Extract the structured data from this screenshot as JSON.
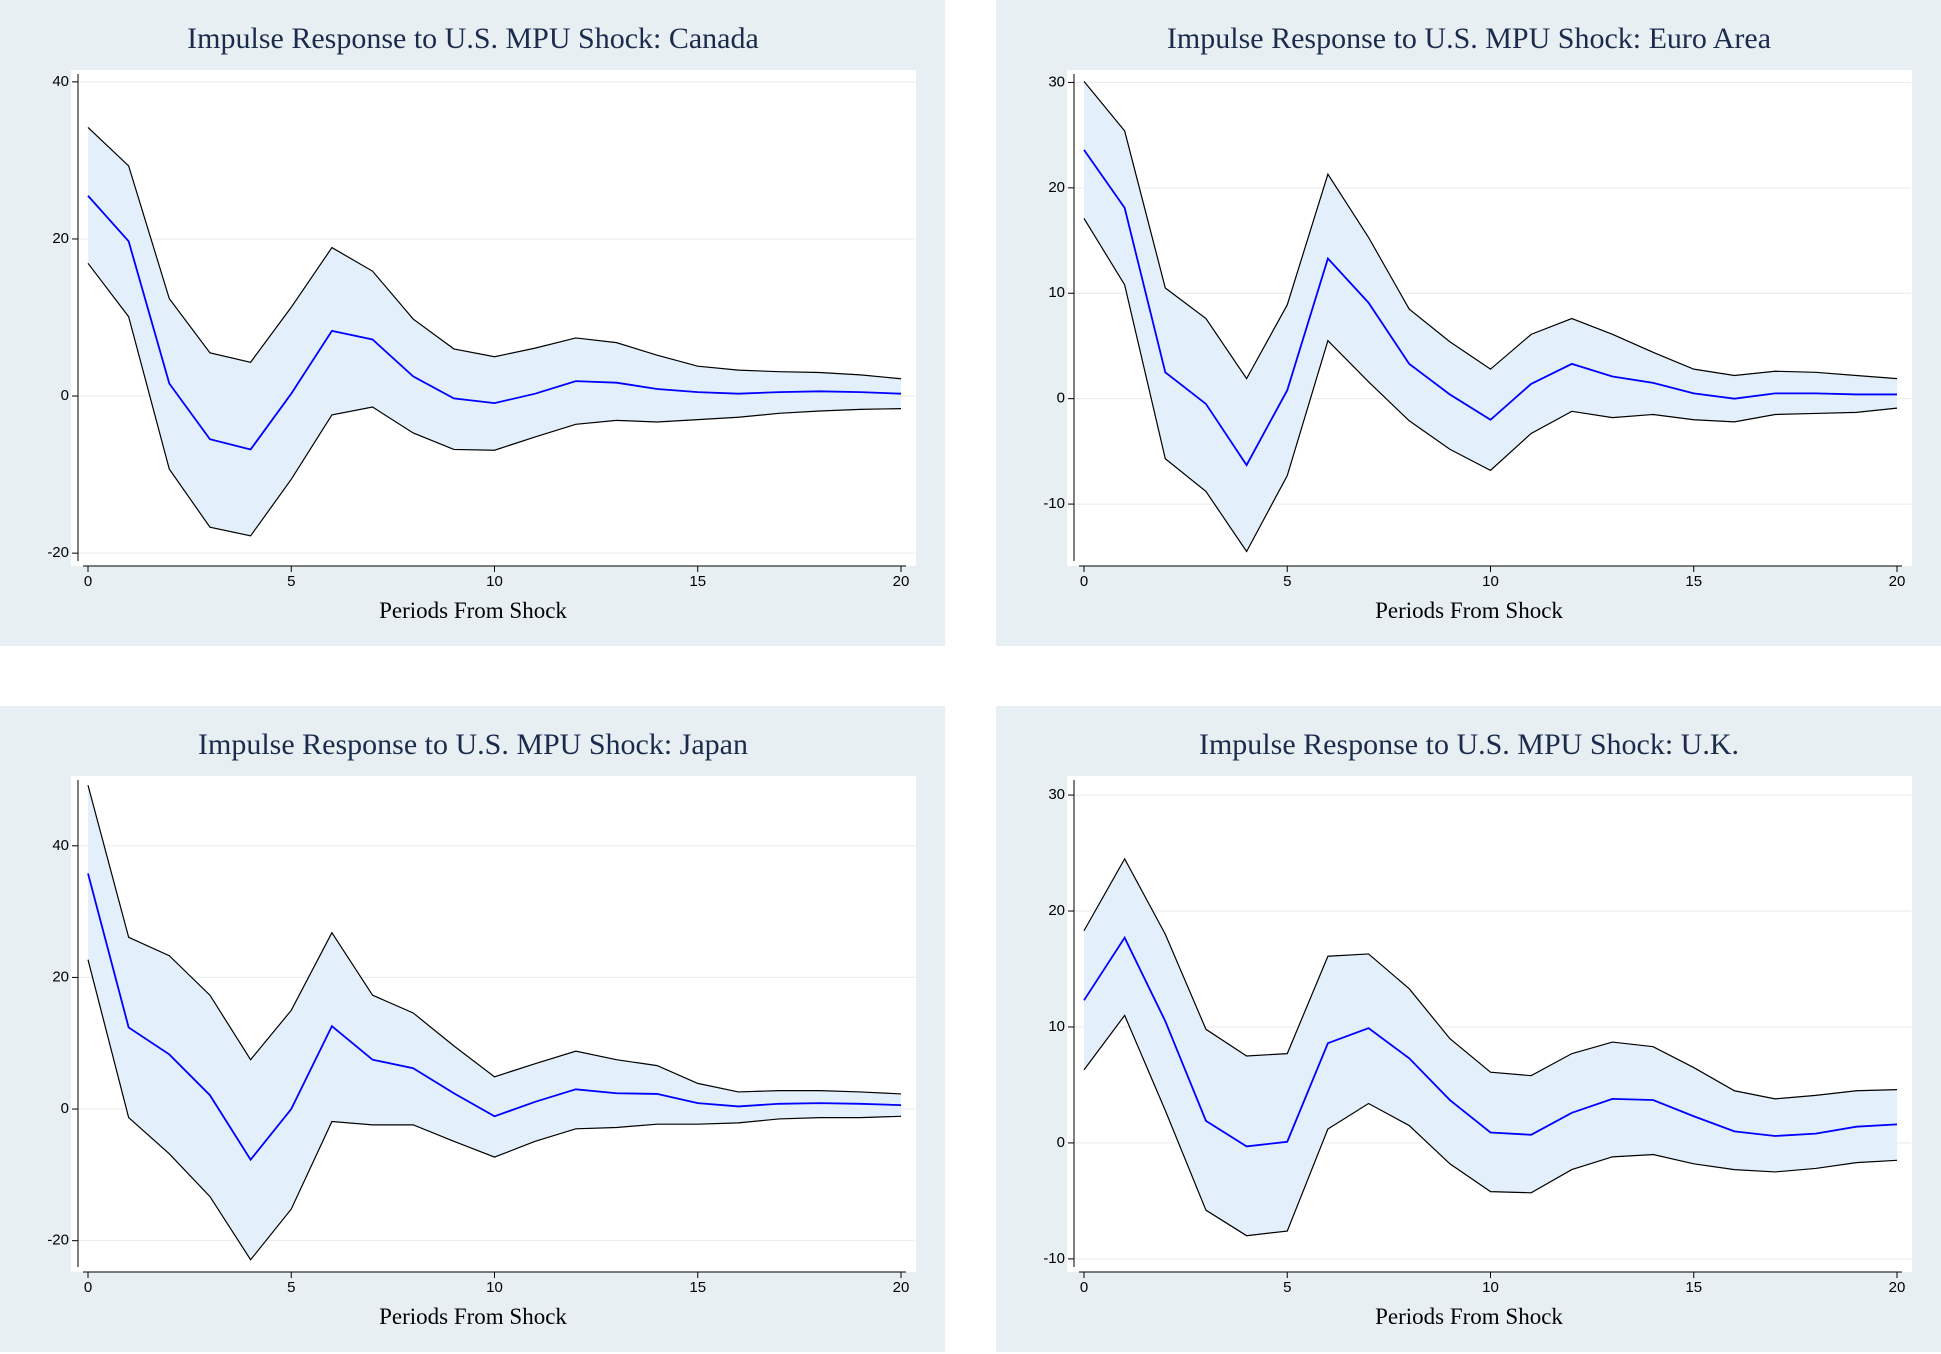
{
  "chart_data": [
    {
      "type": "line",
      "title": "Impulse Response to U.S. MPU Shock: Canada",
      "x_label": "Periods From Shock",
      "x": [
        0,
        1,
        2,
        3,
        4,
        5,
        6,
        7,
        8,
        9,
        10,
        11,
        12,
        13,
        14,
        15,
        16,
        17,
        18,
        19,
        20
      ],
      "xlim": [
        0,
        20
      ],
      "xticks": [
        0,
        5,
        10,
        15,
        20
      ],
      "ylim": [
        -21,
        41
      ],
      "yticks": [
        -20,
        0,
        20,
        40
      ],
      "grid": true,
      "series": [
        {
          "color": "#0000ff",
          "values": [
            25.5,
            19.7,
            1.6,
            -5.5,
            -6.8,
            0.3,
            8.3,
            7.2,
            2.5,
            -0.3,
            -0.9,
            0.3,
            1.9,
            1.7,
            0.9,
            0.5,
            0.3,
            0.5,
            0.6,
            0.5,
            0.3
          ]
        }
      ],
      "band": {
        "color": "#e3effa",
        "line_color": "#000000",
        "upper": [
          34.2,
          29.3,
          12.4,
          5.5,
          4.3,
          11.3,
          18.9,
          15.9,
          9.8,
          6.0,
          5.0,
          6.1,
          7.4,
          6.8,
          5.2,
          3.8,
          3.3,
          3.1,
          3.0,
          2.7,
          2.2
        ],
        "lower": [
          16.9,
          10.1,
          -9.3,
          -16.7,
          -17.8,
          -10.6,
          -2.4,
          -1.4,
          -4.7,
          -6.8,
          -6.9,
          -5.2,
          -3.6,
          -3.1,
          -3.3,
          -3.0,
          -2.7,
          -2.2,
          -1.9,
          -1.7,
          -1.6
        ]
      }
    },
    {
      "type": "line",
      "title": "Impulse Response to U.S. MPU Shock: Euro Area",
      "x_label": "Periods From Shock",
      "x": [
        0,
        1,
        2,
        3,
        4,
        5,
        6,
        7,
        8,
        9,
        10,
        11,
        12,
        13,
        14,
        15,
        16,
        17,
        18,
        19,
        20
      ],
      "xlim": [
        0,
        20
      ],
      "xticks": [
        0,
        5,
        10,
        15,
        20
      ],
      "ylim": [
        -15.4,
        30.8
      ],
      "yticks": [
        -10,
        0,
        10,
        20,
        30
      ],
      "grid": true,
      "series": [
        {
          "color": "#0000ff",
          "values": [
            23.6,
            18.1,
            2.5,
            -0.5,
            -6.3,
            0.8,
            13.3,
            9.1,
            3.3,
            0.4,
            -2.0,
            1.4,
            3.3,
            2.1,
            1.5,
            0.5,
            0,
            0.5,
            0.5,
            0.4,
            0.4
          ]
        }
      ],
      "band": {
        "color": "#e3effa",
        "line_color": "#000000",
        "upper": [
          30.1,
          25.4,
          10.5,
          7.6,
          1.9,
          8.9,
          21.3,
          15.3,
          8.5,
          5.4,
          2.8,
          6.1,
          7.6,
          6.1,
          4.4,
          2.8,
          2.2,
          2.6,
          2.5,
          2.2,
          1.9
        ],
        "lower": [
          17.1,
          10.8,
          -5.7,
          -8.8,
          -14.5,
          -7.3,
          5.5,
          1.6,
          -2.1,
          -4.8,
          -6.8,
          -3.3,
          -1.2,
          -1.8,
          -1.5,
          -2.0,
          -2.2,
          -1.5,
          -1.4,
          -1.3,
          -0.9
        ]
      }
    },
    {
      "type": "line",
      "title": "Impulse Response to U.S. MPU Shock: Japan",
      "x_label": "Periods From Shock",
      "x": [
        0,
        1,
        2,
        3,
        4,
        5,
        6,
        7,
        8,
        9,
        10,
        11,
        12,
        13,
        14,
        15,
        16,
        17,
        18,
        19,
        20
      ],
      "xlim": [
        0,
        20
      ],
      "xticks": [
        0,
        5,
        10,
        15,
        20
      ],
      "ylim": [
        -24,
        50
      ],
      "yticks": [
        -20,
        0,
        20,
        40
      ],
      "grid": true,
      "series": [
        {
          "color": "#0000ff",
          "values": [
            35.8,
            12.4,
            8.3,
            2.1,
            -7.7,
            0,
            12.6,
            7.5,
            6.2,
            2.4,
            -1.1,
            1.1,
            3.0,
            2.4,
            2.3,
            0.9,
            0.4,
            0.8,
            0.9,
            0.8,
            0.6
          ]
        }
      ],
      "band": {
        "color": "#e3effa",
        "line_color": "#000000",
        "upper": [
          49.2,
          26.1,
          23.3,
          17.3,
          7.5,
          15.0,
          26.8,
          17.3,
          14.6,
          9.6,
          4.9,
          6.9,
          8.8,
          7.5,
          6.6,
          3.9,
          2.6,
          2.8,
          2.8,
          2.6,
          2.3
        ],
        "lower": [
          22.7,
          -1.3,
          -6.8,
          -13.3,
          -22.9,
          -15.2,
          -1.9,
          -2.4,
          -2.4,
          -4.9,
          -7.3,
          -4.9,
          -3.0,
          -2.8,
          -2.3,
          -2.3,
          -2.1,
          -1.5,
          -1.3,
          -1.3,
          -1.1
        ]
      }
    },
    {
      "type": "line",
      "title": "Impulse Response to U.S. MPU Shock: U.K.",
      "x_label": "Periods From Shock",
      "x": [
        0,
        1,
        2,
        3,
        4,
        5,
        6,
        7,
        8,
        9,
        10,
        11,
        12,
        13,
        14,
        15,
        16,
        17,
        18,
        19,
        20
      ],
      "xlim": [
        0,
        20
      ],
      "xticks": [
        0,
        5,
        10,
        15,
        20
      ],
      "ylim": [
        -10.7,
        31.3
      ],
      "yticks": [
        -10,
        0,
        10,
        20,
        30
      ],
      "grid": true,
      "series": [
        {
          "color": "#0000ff",
          "values": [
            12.3,
            17.7,
            10.5,
            1.9,
            -0.3,
            0.1,
            8.6,
            9.9,
            7.3,
            3.7,
            0.9,
            0.7,
            2.6,
            3.8,
            3.7,
            2.3,
            1.0,
            0.6,
            0.8,
            1.4,
            1.6
          ]
        }
      ],
      "band": {
        "color": "#e3effa",
        "line_color": "#000000",
        "upper": [
          18.3,
          24.5,
          18.0,
          9.8,
          7.5,
          7.7,
          16.1,
          16.3,
          13.3,
          9.0,
          6.1,
          5.8,
          7.7,
          8.7,
          8.3,
          6.5,
          4.5,
          3.8,
          4.1,
          4.5,
          4.6
        ],
        "lower": [
          6.3,
          11.0,
          2.8,
          -5.8,
          -8.0,
          -7.6,
          1.2,
          3.4,
          1.5,
          -1.8,
          -4.2,
          -4.3,
          -2.3,
          -1.2,
          -1.0,
          -1.8,
          -2.3,
          -2.5,
          -2.2,
          -1.7,
          -1.5
        ]
      }
    }
  ]
}
